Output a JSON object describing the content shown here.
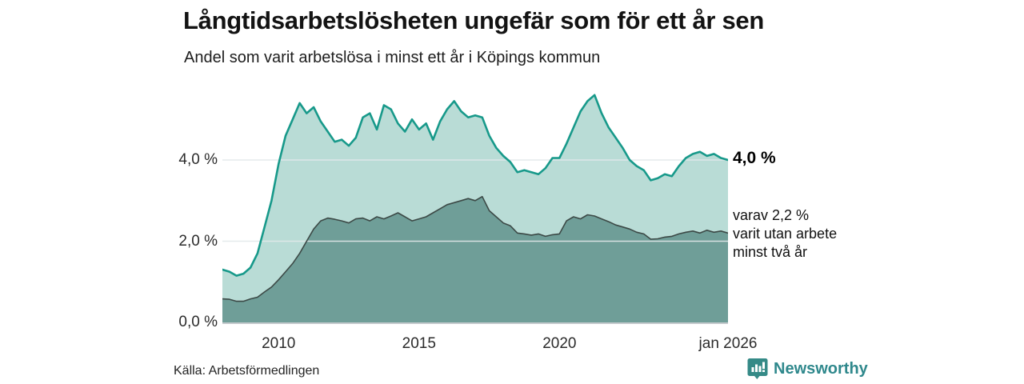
{
  "chart_data": {
    "type": "area",
    "title": "Långtidsarbetslösheten ungefär som för ett år sen",
    "subtitle": "Andel som varit arbetslösa i minst ett år i Köpings kommun",
    "xlabel": "",
    "ylabel": "",
    "xlim": [
      2008,
      2026
    ],
    "ylim": [
      0,
      5.8
    ],
    "grid": "horizontal gridlines at 2.0 and 4.0, drawn faintly over the areas",
    "legend_position": "right-edge direct labels",
    "x": [
      2008.0,
      2008.25,
      2008.5,
      2008.75,
      2009.0,
      2009.25,
      2009.5,
      2009.75,
      2010.0,
      2010.25,
      2010.5,
      2010.75,
      2011.0,
      2011.25,
      2011.5,
      2011.75,
      2012.0,
      2012.25,
      2012.5,
      2012.75,
      2013.0,
      2013.25,
      2013.5,
      2013.75,
      2014.0,
      2014.25,
      2014.5,
      2014.75,
      2015.0,
      2015.25,
      2015.5,
      2015.75,
      2016.0,
      2016.25,
      2016.5,
      2016.75,
      2017.0,
      2017.25,
      2017.5,
      2017.75,
      2018.0,
      2018.25,
      2018.5,
      2018.75,
      2019.0,
      2019.25,
      2019.5,
      2019.75,
      2020.0,
      2020.25,
      2020.5,
      2020.75,
      2021.0,
      2021.25,
      2021.5,
      2021.75,
      2022.0,
      2022.25,
      2022.5,
      2022.75,
      2023.0,
      2023.25,
      2023.5,
      2023.75,
      2024.0,
      2024.25,
      2024.5,
      2024.75,
      2025.0,
      2025.25,
      2025.5,
      2025.75,
      2026.0
    ],
    "series": [
      {
        "name": "Andel som varit arbetslösa i minst ett år",
        "unit": "%",
        "line_color": "#17998a",
        "fill_color": "#b9dcd6",
        "line_width": 2.6,
        "end_value": 4.0,
        "values": [
          1.3,
          1.25,
          1.15,
          1.2,
          1.35,
          1.7,
          2.35,
          3.0,
          3.9,
          4.6,
          5.0,
          5.4,
          5.15,
          5.3,
          4.95,
          4.7,
          4.45,
          4.5,
          4.35,
          4.55,
          5.05,
          5.15,
          4.75,
          5.35,
          5.25,
          4.9,
          4.7,
          5.0,
          4.75,
          4.9,
          4.5,
          4.95,
          5.25,
          5.45,
          5.2,
          5.05,
          5.1,
          5.05,
          4.6,
          4.3,
          4.1,
          3.95,
          3.7,
          3.75,
          3.7,
          3.65,
          3.8,
          4.05,
          4.05,
          4.4,
          4.8,
          5.2,
          5.45,
          5.6,
          5.15,
          4.8,
          4.55,
          4.3,
          4.0,
          3.85,
          3.75,
          3.5,
          3.55,
          3.65,
          3.6,
          3.85,
          4.05,
          4.15,
          4.2,
          4.1,
          4.15,
          4.05,
          4.0
        ]
      },
      {
        "name": "varav utan arbete minst två år",
        "unit": "%",
        "line_color": "#3c4946",
        "fill_color": "#6f9e98",
        "line_width": 1.6,
        "end_value": 2.2,
        "values": [
          0.58,
          0.57,
          0.52,
          0.52,
          0.58,
          0.62,
          0.75,
          0.87,
          1.05,
          1.25,
          1.45,
          1.7,
          2.0,
          2.3,
          2.5,
          2.57,
          2.54,
          2.5,
          2.45,
          2.55,
          2.57,
          2.5,
          2.6,
          2.55,
          2.62,
          2.7,
          2.6,
          2.5,
          2.55,
          2.6,
          2.7,
          2.8,
          2.9,
          2.95,
          3.0,
          3.05,
          3.0,
          3.1,
          2.75,
          2.6,
          2.45,
          2.38,
          2.2,
          2.18,
          2.15,
          2.18,
          2.12,
          2.16,
          2.18,
          2.5,
          2.6,
          2.55,
          2.65,
          2.62,
          2.55,
          2.48,
          2.4,
          2.35,
          2.3,
          2.22,
          2.18,
          2.05,
          2.06,
          2.1,
          2.12,
          2.18,
          2.22,
          2.25,
          2.2,
          2.27,
          2.22,
          2.25,
          2.2
        ]
      }
    ],
    "y_ticks": [
      {
        "value": 0,
        "label": "0,0 %"
      },
      {
        "value": 2,
        "label": "2,0 %"
      },
      {
        "value": 4,
        "label": "4,0 %"
      }
    ],
    "x_ticks": [
      {
        "value": 2010,
        "label": "2010"
      },
      {
        "value": 2015,
        "label": "2015"
      },
      {
        "value": 2020,
        "label": "2020"
      },
      {
        "value": 2026,
        "label": "jan 2026"
      }
    ],
    "gridline_values": [
      2,
      4
    ],
    "colors": {
      "gridline": "#e2e8ea",
      "axis_line": "#c3c9cc",
      "background": "#ffffff"
    }
  },
  "annotations": {
    "total_end_label": "4,0 %",
    "two_year_end_lines": [
      "varav 2,2 %",
      "varit utan arbete",
      "minst två år"
    ]
  },
  "footer": {
    "source": "Källa: Arbetsförmedlingen",
    "brand": "Newsworthy",
    "brand_color": "#2f888c",
    "brand_icon": "bar-chart-speech-bubble"
  }
}
